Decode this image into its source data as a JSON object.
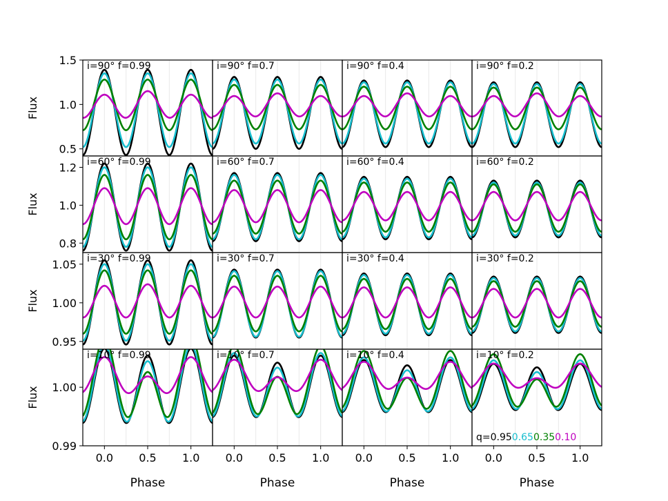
{
  "figure": {
    "y_label": "Flux",
    "x_label": "Phase",
    "x_ticks": [
      "0.0",
      "0.5",
      "1.0"
    ],
    "legend": {
      "prefix": "q=",
      "entries": [
        {
          "label": "0.95",
          "color": "#000000"
        },
        {
          "label": "0.65",
          "color": "#17becf"
        },
        {
          "label": "0.35",
          "color": "#008000"
        },
        {
          "label": "0.10",
          "color": "#bf00bf"
        }
      ]
    }
  },
  "chart_data": {
    "type": "line",
    "x_range": [
      -0.25,
      1.25
    ],
    "x_tick_values": [
      0.0,
      0.5,
      1.0
    ],
    "grid": "faint vertical lines every 0.25 in phase",
    "series_colors": [
      "#000000",
      "#17becf",
      "#008000",
      "#bf00bf"
    ],
    "q_values": [
      0.95,
      0.65,
      0.35,
      0.1
    ],
    "columns_f": [
      "0.99",
      "0.7",
      "0.4",
      "0.2"
    ],
    "rows": [
      {
        "inclination": "90",
        "ylim": [
          0.42,
          1.5
        ],
        "yticks": [
          0.5,
          1.0,
          1.5
        ],
        "ytick_labels": [
          "0.5",
          "1.0",
          "1.5"
        ],
        "panels": [
          {
            "label": "i=90°  f=0.99",
            "series": [
              {
                "max": 1.39,
                "min1": 0.43,
                "min2": 0.43
              },
              {
                "max": 1.35,
                "min1": 0.52,
                "min2": 0.52
              },
              {
                "max": 1.28,
                "min1": 0.71,
                "min2": 0.71
              },
              {
                "max": 1.13,
                "min1": 0.87,
                "min2": 0.83
              }
            ]
          },
          {
            "label": "i=90°  f=0.7",
            "series": [
              {
                "max": 1.31,
                "min1": 0.5,
                "min2": 0.5
              },
              {
                "max": 1.28,
                "min1": 0.56,
                "min2": 0.56
              },
              {
                "max": 1.22,
                "min1": 0.72,
                "min2": 0.72
              },
              {
                "max": 1.11,
                "min1": 0.88,
                "min2": 0.85
              }
            ]
          },
          {
            "label": "i=90°  f=0.4",
            "series": [
              {
                "max": 1.27,
                "min1": 0.52,
                "min2": 0.52
              },
              {
                "max": 1.25,
                "min1": 0.56,
                "min2": 0.56
              },
              {
                "max": 1.2,
                "min1": 0.72,
                "min2": 0.72
              },
              {
                "max": 1.11,
                "min1": 0.88,
                "min2": 0.85
              }
            ]
          },
          {
            "label": "i=90°  f=0.2",
            "series": [
              {
                "max": 1.25,
                "min1": 0.52,
                "min2": 0.52
              },
              {
                "max": 1.23,
                "min1": 0.56,
                "min2": 0.56
              },
              {
                "max": 1.19,
                "min1": 0.72,
                "min2": 0.72
              },
              {
                "max": 1.11,
                "min1": 0.88,
                "min2": 0.85
              }
            ]
          }
        ]
      },
      {
        "inclination": "60",
        "ylim": [
          0.75,
          1.26
        ],
        "yticks": [
          0.8,
          1.0,
          1.2
        ],
        "ytick_labels": [
          "0.8",
          "1.0",
          "1.2"
        ],
        "panels": [
          {
            "label": "i=60°  f=0.99",
            "series": [
              {
                "max": 1.22,
                "min1": 0.76,
                "min2": 0.76
              },
              {
                "max": 1.2,
                "min1": 0.78,
                "min2": 0.78
              },
              {
                "max": 1.16,
                "min1": 0.82,
                "min2": 0.82
              },
              {
                "max": 1.09,
                "min1": 0.9,
                "min2": 0.9
              }
            ]
          },
          {
            "label": "i=60°  f=0.7",
            "series": [
              {
                "max": 1.17,
                "min1": 0.81,
                "min2": 0.81
              },
              {
                "max": 1.16,
                "min1": 0.82,
                "min2": 0.82
              },
              {
                "max": 1.13,
                "min1": 0.85,
                "min2": 0.85
              },
              {
                "max": 1.08,
                "min1": 0.91,
                "min2": 0.91
              }
            ]
          },
          {
            "label": "i=60°  f=0.4",
            "series": [
              {
                "max": 1.15,
                "min1": 0.82,
                "min2": 0.82
              },
              {
                "max": 1.14,
                "min1": 0.83,
                "min2": 0.83
              },
              {
                "max": 1.12,
                "min1": 0.86,
                "min2": 0.86
              },
              {
                "max": 1.07,
                "min1": 0.92,
                "min2": 0.92
              }
            ]
          },
          {
            "label": "i=60°  f=0.2",
            "series": [
              {
                "max": 1.13,
                "min1": 0.83,
                "min2": 0.83
              },
              {
                "max": 1.12,
                "min1": 0.84,
                "min2": 0.84
              },
              {
                "max": 1.11,
                "min1": 0.86,
                "min2": 0.86
              },
              {
                "max": 1.07,
                "min1": 0.92,
                "min2": 0.92
              }
            ]
          }
        ]
      },
      {
        "inclination": "30",
        "ylim": [
          0.94,
          1.065
        ],
        "yticks": [
          0.95,
          1.0,
          1.05
        ],
        "ytick_labels": [
          "0.95",
          "1.00",
          "1.05"
        ],
        "panels": [
          {
            "label": "i=30°  f=0.99",
            "series": [
              {
                "max": 1.055,
                "min1": 0.946,
                "min2": 0.946
              },
              {
                "max": 1.05,
                "min1": 0.951,
                "min2": 0.951
              },
              {
                "max": 1.042,
                "min1": 0.96,
                "min2": 0.96
              },
              {
                "max": 1.023,
                "min1": 0.982,
                "min2": 0.98
              }
            ]
          },
          {
            "label": "i=30°  f=0.7",
            "series": [
              {
                "max": 1.043,
                "min1": 0.955,
                "min2": 0.955
              },
              {
                "max": 1.041,
                "min1": 0.956,
                "min2": 0.956
              },
              {
                "max": 1.035,
                "min1": 0.963,
                "min2": 0.963
              },
              {
                "max": 1.021,
                "min1": 0.981,
                "min2": 0.981
              }
            ]
          },
          {
            "label": "i=30°  f=0.4",
            "series": [
              {
                "max": 1.038,
                "min1": 0.958,
                "min2": 0.958
              },
              {
                "max": 1.036,
                "min1": 0.96,
                "min2": 0.96
              },
              {
                "max": 1.031,
                "min1": 0.966,
                "min2": 0.966
              },
              {
                "max": 1.02,
                "min1": 0.981,
                "min2": 0.981
              }
            ]
          },
          {
            "label": "i=30°  f=0.2",
            "series": [
              {
                "max": 1.034,
                "min1": 0.961,
                "min2": 0.961
              },
              {
                "max": 1.032,
                "min1": 0.963,
                "min2": 0.963
              },
              {
                "max": 1.028,
                "min1": 0.969,
                "min2": 0.969
              },
              {
                "max": 1.018,
                "min1": 0.981,
                "min2": 0.981
              }
            ]
          }
        ]
      },
      {
        "inclination": "10",
        "ylim": [
          0.99,
          1.0065
        ],
        "yticks": [
          0.99,
          1.0
        ],
        "ytick_labels": [
          "0.99",
          "1.00"
        ],
        "panels": [
          {
            "label": "i=10°  f=0.99",
            "series": [
              {
                "max": 1.006,
                "min1": 0.9933,
                "min2": 0.9945
              },
              {
                "max": 1.0058,
                "min1": 0.9928,
                "min2": 0.9955
              },
              {
                "max": 1.0055,
                "min1": 0.9922,
                "min2": 0.998
              },
              {
                "max": 1.0035,
                "min1": 0.9975,
                "min2": 1.0008
              }
            ]
          },
          {
            "label": "i=10°  f=0.7",
            "series": [
              {
                "max": 1.0048,
                "min1": 0.9943,
                "min2": 0.9955
              },
              {
                "max": 1.0046,
                "min1": 0.9938,
                "min2": 0.9963
              },
              {
                "max": 1.0044,
                "min1": 0.993,
                "min2": 0.9982
              },
              {
                "max": 1.0032,
                "min1": 0.998,
                "min2": 1.001
              }
            ]
          },
          {
            "label": "i=10°  f=0.4",
            "series": [
              {
                "max": 1.0042,
                "min1": 0.9953,
                "min2": 0.9962
              },
              {
                "max": 1.004,
                "min1": 0.9948,
                "min2": 0.997
              },
              {
                "max": 1.0039,
                "min1": 0.9942,
                "min2": 0.9988
              },
              {
                "max": 1.003,
                "min1": 0.9985,
                "min2": 1.0012
              }
            ]
          },
          {
            "label": "i=10°  f=0.2",
            "series": [
              {
                "max": 1.0037,
                "min1": 0.9958,
                "min2": 0.9964
              },
              {
                "max": 1.0036,
                "min1": 0.9953,
                "min2": 0.9973
              },
              {
                "max": 1.0035,
                "min1": 0.9947,
                "min2": 0.999
              },
              {
                "max": 1.0028,
                "min1": 0.9988,
                "min2": 1.0013
              }
            ]
          }
        ]
      }
    ]
  }
}
